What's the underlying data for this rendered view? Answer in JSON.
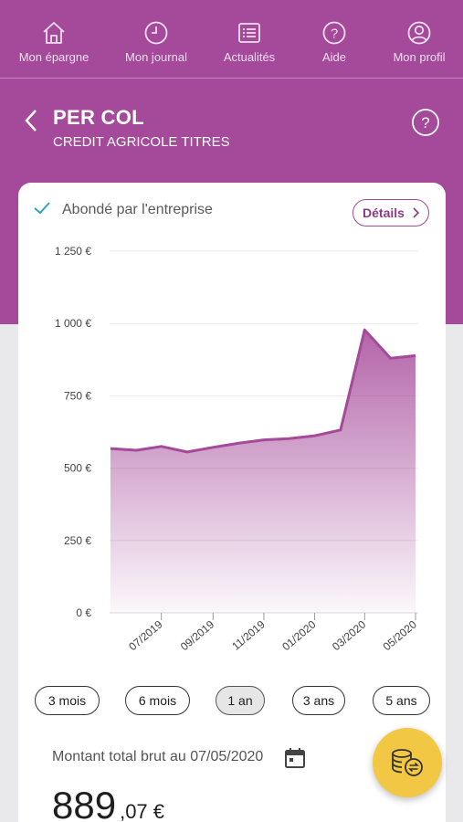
{
  "nav": [
    {
      "label": "Mon épargne",
      "icon": "home-icon"
    },
    {
      "label": "Mon journal",
      "icon": "clock-icon"
    },
    {
      "label": "Actualités",
      "icon": "news-list-icon"
    },
    {
      "label": "Aide",
      "icon": "help-circle-icon"
    },
    {
      "label": "Mon profil",
      "icon": "user-icon"
    }
  ],
  "header": {
    "title": "PER COL",
    "subtitle": "CREDIT AGRICOLE TITRES"
  },
  "card": {
    "abonde_label": "Abondé par l'entreprise",
    "details_label": "Détails"
  },
  "chart_data": {
    "type": "area",
    "y_ticks": [
      "0 €",
      "250 €",
      "500 €",
      "750 €",
      "1 000 €",
      "1 250 €"
    ],
    "x_ticks": [
      "07/2019",
      "09/2019",
      "11/2019",
      "01/2020",
      "03/2020",
      "05/2020"
    ],
    "ylim": [
      0,
      1250
    ],
    "y_tick_values": [
      0,
      250,
      500,
      750,
      1000,
      1250
    ],
    "points": [
      {
        "x": "2019-05-07",
        "y": 568
      },
      {
        "x": "2019-06-07",
        "y": 562
      },
      {
        "x": "2019-07-07",
        "y": 575
      },
      {
        "x": "2019-08-07",
        "y": 556
      },
      {
        "x": "2019-09-07",
        "y": 572
      },
      {
        "x": "2019-10-07",
        "y": 586
      },
      {
        "x": "2019-11-07",
        "y": 598
      },
      {
        "x": "2019-12-07",
        "y": 602
      },
      {
        "x": "2020-01-07",
        "y": 612
      },
      {
        "x": "2020-02-07",
        "y": 632
      },
      {
        "x": "2020-03-07",
        "y": 978
      },
      {
        "x": "2020-04-07",
        "y": 880
      },
      {
        "x": "2020-05-07",
        "y": 889
      }
    ],
    "color": "#a5499a",
    "grid": true
  },
  "ranges": [
    {
      "label": "3 mois",
      "active": false
    },
    {
      "label": "6 mois",
      "active": false
    },
    {
      "label": "1 an",
      "active": true
    },
    {
      "label": "3 ans",
      "active": false
    },
    {
      "label": "5 ans",
      "active": false
    }
  ],
  "total": {
    "label": "Montant total brut au 07/05/2020",
    "amount_int": "889",
    "amount_dec": ",07 €"
  }
}
